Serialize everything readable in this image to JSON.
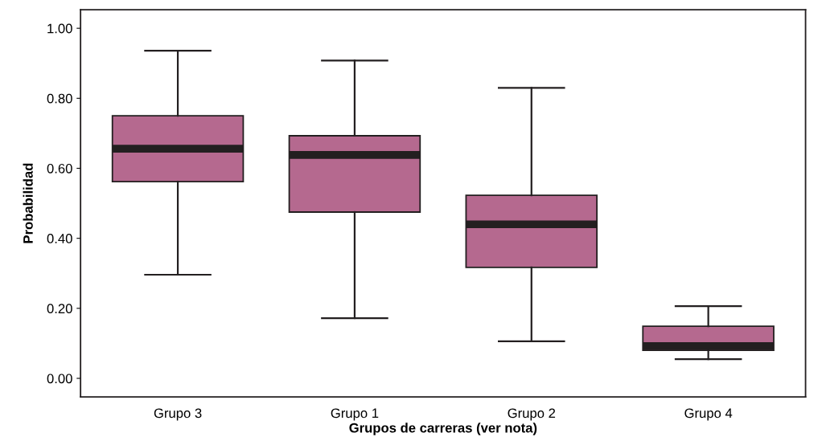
{
  "chart_data": {
    "type": "box",
    "xlabel": "Grupos de carreras (ver nota)",
    "ylabel": "Probabilidad",
    "categories": [
      "Grupo 3",
      "Grupo 1",
      "Grupo 2",
      "Grupo 4"
    ],
    "series": [
      {
        "color": "#b5698f",
        "boxes": [
          {
            "low": 0.296,
            "q1": 0.562,
            "median": 0.656,
            "q3": 0.75,
            "high": 0.936
          },
          {
            "low": 0.172,
            "q1": 0.475,
            "median": 0.638,
            "q3": 0.693,
            "high": 0.908
          },
          {
            "low": 0.106,
            "q1": 0.317,
            "median": 0.44,
            "q3": 0.523,
            "high": 0.83
          },
          {
            "low": 0.055,
            "q1": 0.08,
            "median": 0.092,
            "q3": 0.149,
            "high": 0.206
          }
        ]
      }
    ],
    "ylim": [
      -0.053,
      1.053
    ],
    "yticks": [
      {
        "value": 0,
        "label": "0.00"
      },
      {
        "value": 0.2,
        "label": "0.20"
      },
      {
        "value": 0.4,
        "label": "0.40"
      },
      {
        "value": 0.6,
        "label": "0.60"
      },
      {
        "value": 0.8,
        "label": "0.80"
      },
      {
        "value": 1.0,
        "label": "1.00"
      }
    ],
    "grid": false
  }
}
